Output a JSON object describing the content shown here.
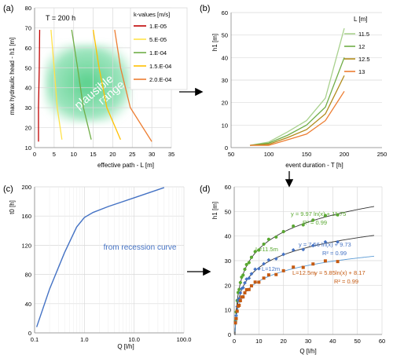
{
  "chart_data": [
    {
      "panel_label": "(a)",
      "type": "line",
      "annotation": "T = 200 h",
      "xlabel": "effective path - L [m]",
      "ylabel": "max hydraulic head - h1 [m]",
      "xlim": [
        0,
        35
      ],
      "ylim": [
        10,
        80
      ],
      "xticks": [
        0,
        5,
        10,
        15,
        20,
        25,
        30,
        35
      ],
      "yticks": [
        10,
        20,
        30,
        40,
        50,
        60,
        70,
        80
      ],
      "legend_title": "k-values [m/s]",
      "legend_position": "right",
      "shaded_region_text": [
        "plausible",
        "range"
      ],
      "series": [
        {
          "name": "1.E-05",
          "color": "#c00000",
          "points": [
            [
              1.3,
              69
            ],
            [
              1.2,
              50
            ],
            [
              1.0,
              30
            ],
            [
              1.0,
              13
            ]
          ]
        },
        {
          "name": "5.E-05",
          "color": "#ffe24a",
          "points": [
            [
              4.2,
              69
            ],
            [
              5.0,
              50
            ],
            [
              5.8,
              30
            ],
            [
              7.0,
              14
            ]
          ]
        },
        {
          "name": "1.E-04",
          "color": "#70ad47",
          "points": [
            [
              9.5,
              69
            ],
            [
              11.0,
              50
            ],
            [
              12.5,
              30
            ],
            [
              14.5,
              14
            ]
          ]
        },
        {
          "name": "1.5.E-04",
          "color": "#ffc000",
          "points": [
            [
              15.0,
              69
            ],
            [
              16.5,
              50
            ],
            [
              18.5,
              30
            ],
            [
              22.0,
              14
            ]
          ]
        },
        {
          "name": "2.0.E-04",
          "color": "#ed7d31",
          "points": [
            [
              20.5,
              69
            ],
            [
              22.0,
              50
            ],
            [
              24.5,
              30
            ],
            [
              30.0,
              13
            ]
          ]
        }
      ]
    },
    {
      "panel_label": "(b)",
      "type": "line",
      "xlabel": "event duration - T [h]",
      "ylabel": "h1 [m]",
      "xlim": [
        50,
        250
      ],
      "ylim": [
        0,
        60
      ],
      "xticks": [
        50,
        100,
        150,
        200,
        250
      ],
      "yticks": [
        0,
        10,
        20,
        30,
        40,
        50,
        60
      ],
      "legend_title": "L [m]",
      "legend_position": "right",
      "x": [
        75,
        100,
        125,
        150,
        175,
        200
      ],
      "series": [
        {
          "name": "11.5",
          "color": "#a9d18e",
          "values": [
            1,
            2.5,
            7,
            12,
            22,
            53
          ]
        },
        {
          "name": "12",
          "color": "#70ad47",
          "values": [
            1,
            2,
            5.5,
            10,
            18,
            40
          ]
        },
        {
          "name": "12.5",
          "color": "#b08a1a",
          "values": [
            1,
            1.5,
            4.5,
            8,
            15,
            32
          ]
        },
        {
          "name": "13",
          "color": "#ed7d31",
          "values": [
            1,
            1,
            3.5,
            6,
            12,
            25
          ]
        }
      ]
    },
    {
      "panel_label": "(c)",
      "type": "line",
      "xlabel": "Q [l/h]",
      "ylabel": "t0 [h]",
      "xscale": "log",
      "xlim": [
        0.1,
        100
      ],
      "ylim": [
        0,
        200
      ],
      "xticks": [
        "0.1",
        "1.0",
        "10.0",
        "100.0"
      ],
      "yticks": [
        0,
        40,
        80,
        120,
        160,
        200
      ],
      "annotation": "from recession curve",
      "series": [
        {
          "name": "",
          "color": "#4472c4",
          "x": [
            0.11,
            0.2,
            0.4,
            0.7,
            1.0,
            1.5,
            3,
            10,
            20,
            40
          ],
          "values": [
            8,
            60,
            110,
            145,
            158,
            165,
            173,
            185,
            192,
            199
          ]
        }
      ]
    },
    {
      "panel_label": "(d)",
      "type": "scatter",
      "xlabel": "Q [l/h]",
      "ylabel": "h1 [m]",
      "xlim": [
        0,
        60
      ],
      "ylim": [
        0,
        60
      ],
      "xticks": [
        0,
        10,
        20,
        30,
        40,
        50,
        60
      ],
      "yticks": [
        0,
        10,
        20,
        30,
        40,
        50,
        60
      ],
      "series": [
        {
          "name": "L=11.5m",
          "color": "#5aa832",
          "fit_label": "y = 9.97 ln(x) + 11.75",
          "r2_label": "R² = 0.99",
          "a": 9.97,
          "b": 11.75,
          "fit_color": "#333333",
          "x": [
            0.5,
            0.8,
            1.2,
            1.6,
            2.0,
            2.5,
            3.0,
            3.6,
            4.3,
            5.0,
            6.0,
            7.0,
            8.5,
            10,
            12,
            14,
            17,
            20,
            24,
            28,
            32,
            37,
            42
          ]
        },
        {
          "name": "L=12m",
          "color": "#4472c4",
          "fit_label": "y = 7.56 ln(x) + 9.73",
          "r2_label": "R² = 0.99",
          "a": 7.56,
          "b": 9.73,
          "fit_color": "#333333",
          "x": [
            0.5,
            0.8,
            1.2,
            1.6,
            2.0,
            2.5,
            3.0,
            3.6,
            4.3,
            5.0,
            6.0,
            7.0,
            8.5,
            10,
            12,
            14,
            17,
            20,
            24,
            28,
            32,
            37,
            42
          ]
        },
        {
          "name": "L=12.5m",
          "color": "#c55a11",
          "fit_label": "y = 5.85ln(x) + 8.17",
          "r2_label": "R² = 0.99",
          "a": 5.85,
          "b": 8.17,
          "fit_color": "#5b9bd5",
          "x": [
            0.5,
            0.8,
            1.2,
            1.6,
            2.0,
            2.5,
            3.0,
            3.6,
            4.3,
            5.0,
            6.0,
            7.0,
            8.5,
            10,
            12,
            14,
            17,
            20,
            24,
            28,
            32,
            37,
            42
          ]
        }
      ]
    }
  ]
}
